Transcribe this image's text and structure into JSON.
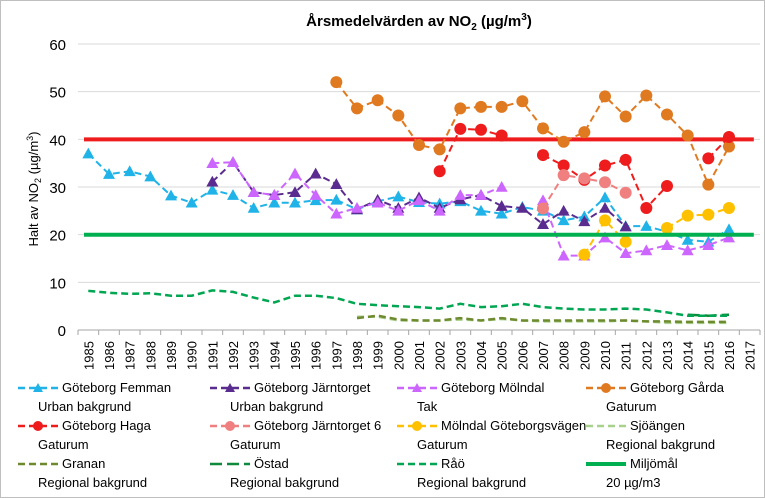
{
  "chart_data": {
    "type": "line",
    "title_main": "Årsmedelvärden av NO",
    "title_sub": "2",
    "title_unit_pre": " (µg/m",
    "title_unit_sup": "3",
    "title_unit_post": ")",
    "ylabel_main": "Halt av NO",
    "ylabel_sub": "2",
    "ylabel_unit_pre": " (µg/m",
    "ylabel_unit_sup": "3",
    "ylabel_unit_post": ")",
    "ylim": [
      0,
      60
    ],
    "yticks": [
      "0",
      "10",
      "20",
      "30",
      "40",
      "50",
      "60"
    ],
    "x": [
      "1985",
      "1986",
      "1987",
      "1988",
      "1989",
      "1990",
      "1991",
      "1992",
      "1993",
      "1994",
      "1995",
      "1996",
      "1997",
      "1998",
      "1999",
      "2000",
      "2001",
      "2002",
      "2003",
      "2004",
      "2005",
      "2006",
      "2007",
      "2008",
      "2009",
      "2010",
      "2011",
      "2012",
      "2013",
      "2014",
      "2015",
      "2016",
      "2017"
    ],
    "grid": true,
    "legend_position": "bottom",
    "series": [
      {
        "name": "Göteborg Femman",
        "name2": "Urban bakgrund",
        "color": "#1fb3e8",
        "style": "dash",
        "marker": "triangle",
        "values": [
          37,
          32.7,
          33.3,
          32.2,
          28.2,
          26.7,
          29.4,
          28.3,
          25.6,
          26.7,
          26.7,
          27.2,
          27.3,
          25.3,
          27,
          28,
          26.8,
          26.5,
          27,
          25,
          24.4,
          25.8,
          25,
          23,
          23.8,
          27.8,
          21.8,
          21.8,
          20.6,
          18.9,
          18.5,
          21.1,
          null
        ]
      },
      {
        "name": "Göteborg Järntorget",
        "name2": "Urban bakgrund",
        "color": "#5b2c8f",
        "style": "dash",
        "marker": "triangle",
        "values": [
          null,
          null,
          null,
          null,
          null,
          null,
          31.1,
          35.2,
          28.9,
          28.3,
          28.9,
          32.8,
          30.6,
          25.3,
          27.3,
          25.6,
          27.8,
          25.6,
          27.4,
          28.3,
          26,
          25.6,
          22.2,
          25,
          22.8,
          25.6,
          21.7,
          null,
          null,
          null,
          null,
          null,
          null
        ]
      },
      {
        "name": "Göteborg Mölndal",
        "name2": "Tak",
        "color": "#cc66ff",
        "style": "dash",
        "marker": "triangle",
        "values": [
          null,
          null,
          null,
          null,
          null,
          null,
          35,
          35.2,
          28.9,
          28.3,
          32.8,
          28.3,
          24.4,
          25.6,
          26.7,
          25,
          27.2,
          25,
          28.3,
          28.3,
          30,
          null,
          27.2,
          15.6,
          15.6,
          19.4,
          16.1,
          16.7,
          17.8,
          16.7,
          17.8,
          19.4,
          null
        ]
      },
      {
        "name": "Göteborg Gårda",
        "name2": "Gaturum",
        "color": "#e07a20",
        "style": "dash",
        "marker": "circle",
        "values": [
          null,
          null,
          null,
          null,
          null,
          null,
          null,
          null,
          null,
          null,
          null,
          null,
          52,
          46.5,
          48.2,
          45,
          38.8,
          37.9,
          46.5,
          46.8,
          46.8,
          48,
          42.3,
          39.5,
          41.5,
          49,
          44.8,
          49.2,
          45.2,
          40.8,
          30.5,
          38.5,
          null
        ]
      },
      {
        "name": "Göteborg Haga",
        "name2": "Gaturum",
        "color": "#ee1c1c",
        "style": "dash",
        "marker": "circle",
        "values": [
          null,
          null,
          null,
          null,
          null,
          null,
          null,
          null,
          null,
          null,
          null,
          null,
          null,
          null,
          null,
          null,
          null,
          33.3,
          42.2,
          42,
          40.8,
          null,
          36.7,
          34.5,
          31.5,
          34.5,
          35.7,
          25.6,
          30.2,
          null,
          36,
          40.5,
          null
        ]
      },
      {
        "name": "Göteborg Järntorget 6",
        "name2": "Gaturum",
        "color": "#f08080",
        "style": "dash",
        "marker": "circle",
        "values": [
          null,
          null,
          null,
          null,
          null,
          null,
          null,
          null,
          null,
          null,
          null,
          null,
          null,
          null,
          null,
          null,
          null,
          null,
          null,
          null,
          null,
          null,
          25.5,
          32.5,
          31.8,
          31,
          28.8,
          null,
          null,
          null,
          null,
          null,
          null
        ]
      },
      {
        "name": "Mölndal Göteborgsvägen",
        "name2": "Gaturum",
        "color": "#ffc000",
        "style": "dash",
        "marker": "circle",
        "values": [
          null,
          null,
          null,
          null,
          null,
          null,
          null,
          null,
          null,
          null,
          null,
          null,
          null,
          null,
          null,
          null,
          null,
          null,
          null,
          null,
          null,
          null,
          null,
          null,
          15.8,
          23,
          18.5,
          null,
          21.4,
          24,
          24.2,
          25.6,
          null
        ]
      },
      {
        "name": "Sjöängen",
        "name2": "Regional bakgrund",
        "color": "#a9d18e",
        "style": "dash",
        "marker": "none",
        "values": [
          null,
          null,
          null,
          null,
          null,
          null,
          null,
          null,
          null,
          null,
          null,
          null,
          null,
          2.8,
          2.8,
          2,
          2,
          2,
          2.2,
          2,
          2.3,
          2,
          1.8,
          1.8,
          1.8,
          1.8,
          2,
          1.8,
          1.5,
          1.5,
          1.5,
          1.5,
          null
        ]
      },
      {
        "name": "Granan",
        "name2": "Regional bakgrund",
        "color": "#6d8b2e",
        "style": "dash",
        "marker": "none",
        "values": [
          null,
          null,
          null,
          null,
          null,
          null,
          null,
          null,
          null,
          null,
          null,
          null,
          null,
          2.5,
          3,
          2.2,
          2,
          2,
          2.5,
          2,
          2.5,
          2,
          2,
          2,
          2,
          2,
          2,
          1.8,
          1.8,
          1.7,
          1.7,
          1.7,
          null
        ]
      },
      {
        "name": "Östad",
        "name2": "Regional bakgrund",
        "color": "#0d8a3c",
        "style": "longdash",
        "marker": "none",
        "values": [
          null,
          null,
          null,
          null,
          null,
          null,
          null,
          null,
          null,
          null,
          null,
          null,
          null,
          null,
          null,
          null,
          null,
          null,
          null,
          null,
          null,
          null,
          null,
          null,
          null,
          null,
          null,
          null,
          null,
          3.2,
          3,
          3.2,
          null
        ]
      },
      {
        "name": "Råö",
        "name2": "Regional bakgrund",
        "color": "#00a651",
        "style": "dash",
        "marker": "none",
        "values": [
          8.2,
          7.8,
          7.6,
          7.7,
          7.2,
          7.2,
          8.3,
          8,
          6.8,
          5.8,
          7.2,
          7.2,
          6.7,
          5.5,
          5.2,
          5,
          4.8,
          4.5,
          5.5,
          4.8,
          5,
          5.5,
          4.8,
          4.5,
          4.3,
          4.3,
          4.5,
          4.3,
          3.7,
          3,
          3,
          3,
          null
        ]
      },
      {
        "name": "Miljömål",
        "name2": "20 µg/m3",
        "color": "#00b050",
        "style": "solid",
        "marker": "none",
        "values": [
          20,
          20,
          20,
          20,
          20,
          20,
          20,
          20,
          20,
          20,
          20,
          20,
          20,
          20,
          20,
          20,
          20,
          20,
          20,
          20,
          20,
          20,
          20,
          20,
          20,
          20,
          20,
          20,
          20,
          20,
          20,
          20,
          20
        ]
      }
    ],
    "reference_line": {
      "value": 40,
      "color": "#ee1c1c"
    }
  }
}
